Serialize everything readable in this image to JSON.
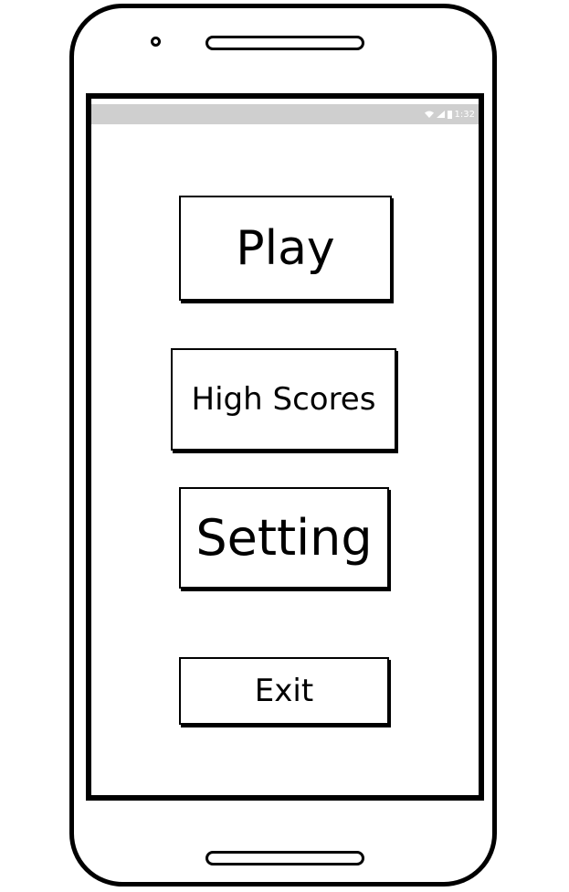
{
  "status_bar": {
    "time": "1:32",
    "icons": [
      "wifi-icon",
      "signal-icon",
      "battery-icon"
    ]
  },
  "menu": {
    "play_label": "Play",
    "high_scores_label": "High Scores",
    "setting_label": "Setting",
    "exit_label": "Exit"
  },
  "colors": {
    "status_bar_bg": "#cfcfcf",
    "outline": "#000000",
    "background": "#ffffff"
  }
}
